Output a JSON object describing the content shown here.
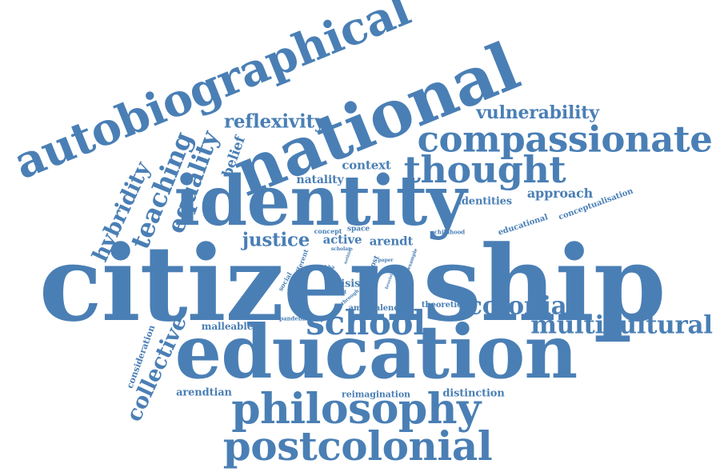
{
  "color": "#4a7fb5",
  "words": [
    {
      "id": "citizenship",
      "text": "citizenship",
      "weight": 100
    },
    {
      "id": "education",
      "text": "education",
      "weight": 78
    },
    {
      "id": "identity",
      "text": "identity",
      "weight": 68
    },
    {
      "id": "national",
      "text": "national",
      "weight": 66
    },
    {
      "id": "autobiographical",
      "text": "autobiographical",
      "weight": 52
    },
    {
      "id": "philosophy",
      "text": "philosophy",
      "weight": 48
    },
    {
      "id": "postcolonial",
      "text": "postcolonial",
      "weight": 46
    },
    {
      "id": "compassionate",
      "text": "compassionate",
      "weight": 42
    },
    {
      "id": "thought",
      "text": "thought",
      "weight": 42
    },
    {
      "id": "school",
      "text": "school",
      "weight": 38
    },
    {
      "id": "multicultural",
      "text": "multicultural",
      "weight": 30
    },
    {
      "id": "colonial",
      "text": "colonial",
      "weight": 28
    },
    {
      "id": "teaching",
      "text": "teaching",
      "weight": 28
    },
    {
      "id": "equality",
      "text": "equality",
      "weight": 28
    },
    {
      "id": "hybridity",
      "text": "hybridity",
      "weight": 26
    },
    {
      "id": "collective",
      "text": "collective",
      "weight": 24
    },
    {
      "id": "reflexivity",
      "text": "reflexivity",
      "weight": 22
    },
    {
      "id": "vulnerability",
      "text": "vulnerability",
      "weight": 22
    },
    {
      "id": "justice",
      "text": "justice",
      "weight": 22
    },
    {
      "id": "belief",
      "text": "belief",
      "weight": 16
    },
    {
      "id": "context",
      "text": "context",
      "weight": 14
    },
    {
      "id": "natality",
      "text": "natality",
      "weight": 14
    },
    {
      "id": "approach",
      "text": "approach",
      "weight": 14
    },
    {
      "id": "identities",
      "text": "identities",
      "weight": 13
    },
    {
      "id": "active",
      "text": "active",
      "weight": 14
    },
    {
      "id": "arendt",
      "text": "arendt",
      "weight": 14
    },
    {
      "id": "arendtian",
      "text": "arendtian",
      "weight": 13
    },
    {
      "id": "reimagination",
      "text": "reimagination",
      "weight": 11
    },
    {
      "id": "distinction",
      "text": "distinction",
      "weight": 12
    },
    {
      "id": "malleable",
      "text": "malleable",
      "weight": 11
    },
    {
      "id": "crisis",
      "text": "crisis",
      "weight": 12
    },
    {
      "id": "ambivalence",
      "text": "ambivalence",
      "weight": 10
    },
    {
      "id": "theoretical",
      "text": "theoretical",
      "weight": 10
    },
    {
      "id": "educational",
      "text": "educational",
      "weight": 9
    },
    {
      "id": "conceptualisation",
      "text": "conceptualisation",
      "weight": 9
    },
    {
      "id": "consideration",
      "text": "consideration",
      "weight": 10
    },
    {
      "id": "childhood",
      "text": "childhood",
      "weight": 7
    },
    {
      "id": "space",
      "text": "space",
      "weight": 8
    },
    {
      "id": "concept",
      "text": "concept",
      "weight": 7
    },
    {
      "id": "different",
      "text": "different",
      "weight": 7
    },
    {
      "id": "social",
      "text": "social",
      "weight": 7
    },
    {
      "id": "pandemic",
      "text": "pandemic",
      "weight": 6
    },
    {
      "id": "scholar",
      "text": "scholar",
      "weight": 5
    },
    {
      "id": "bhabha",
      "text": "bhabha",
      "weight": 5
    },
    {
      "id": "debate",
      "text": "debate",
      "weight": 5
    },
    {
      "id": "account",
      "text": "account",
      "weight": 5
    },
    {
      "id": "post",
      "text": "post",
      "weight": 8
    },
    {
      "id": "paper",
      "text": "paper",
      "weight": 5
    },
    {
      "id": "example",
      "text": "example",
      "weight": 5
    },
    {
      "id": "through",
      "text": "through",
      "weight": 5
    },
    {
      "id": "heuristic",
      "text": "heuristic",
      "weight": 4
    },
    {
      "id": "nothing",
      "text": "nothing",
      "weight": 4
    }
  ]
}
